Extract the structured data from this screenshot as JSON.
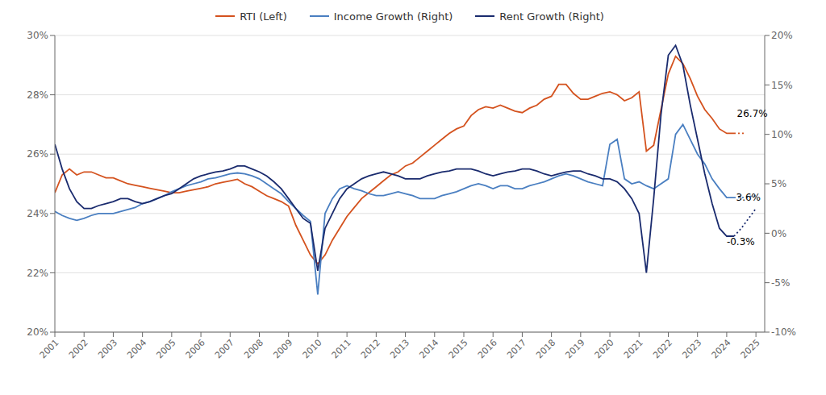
{
  "chart_data": {
    "type": "line",
    "x": [
      2001.0,
      2001.25,
      2001.5,
      2001.75,
      2002.0,
      2002.25,
      2002.5,
      2002.75,
      2003.0,
      2003.25,
      2003.5,
      2003.75,
      2004.0,
      2004.25,
      2004.5,
      2004.75,
      2005.0,
      2005.25,
      2005.5,
      2005.75,
      2006.0,
      2006.25,
      2006.5,
      2006.75,
      2007.0,
      2007.25,
      2007.5,
      2007.75,
      2008.0,
      2008.25,
      2008.5,
      2008.75,
      2009.0,
      2009.25,
      2009.5,
      2009.75,
      2010.0,
      2010.25,
      2010.5,
      2010.75,
      2011.0,
      2011.25,
      2011.5,
      2011.75,
      2012.0,
      2012.25,
      2012.5,
      2012.75,
      2013.0,
      2013.25,
      2013.5,
      2013.75,
      2014.0,
      2014.25,
      2014.5,
      2014.75,
      2015.0,
      2015.25,
      2015.5,
      2015.75,
      2016.0,
      2016.25,
      2016.5,
      2016.75,
      2017.0,
      2017.25,
      2017.5,
      2017.75,
      2018.0,
      2018.25,
      2018.5,
      2018.75,
      2019.0,
      2019.25,
      2019.5,
      2019.75,
      2020.0,
      2020.25,
      2020.5,
      2020.75,
      2021.0,
      2021.25,
      2021.5,
      2021.75,
      2022.0,
      2022.25,
      2022.5,
      2022.75,
      2023.0,
      2023.25,
      2023.5,
      2023.75,
      2024.0,
      2024.25
    ],
    "series": [
      {
        "name": "RTI (Left)",
        "color": "#d4521e",
        "axis": "y",
        "line_style": "solid",
        "values": [
          24.7,
          25.3,
          25.5,
          25.3,
          25.4,
          25.4,
          25.3,
          25.2,
          25.2,
          25.1,
          25.0,
          24.95,
          24.9,
          24.85,
          24.8,
          24.75,
          24.7,
          24.7,
          24.75,
          24.8,
          24.85,
          24.9,
          25.0,
          25.05,
          25.1,
          25.15,
          25.0,
          24.9,
          24.75,
          24.6,
          24.5,
          24.4,
          24.25,
          23.6,
          23.1,
          22.6,
          22.3,
          22.6,
          23.1,
          23.5,
          23.9,
          24.2,
          24.5,
          24.7,
          24.9,
          25.1,
          25.3,
          25.4,
          25.6,
          25.7,
          25.9,
          26.1,
          26.3,
          26.5,
          26.7,
          26.85,
          26.95,
          27.3,
          27.5,
          27.6,
          27.55,
          27.65,
          27.55,
          27.45,
          27.4,
          27.55,
          27.65,
          27.85,
          27.95,
          28.35,
          28.35,
          28.05,
          27.85,
          27.85,
          27.95,
          28.05,
          28.1,
          28.0,
          27.8,
          27.9,
          28.1,
          26.1,
          26.3,
          27.5,
          28.7,
          29.3,
          29.05,
          28.55,
          27.95,
          27.5,
          27.2,
          26.85,
          26.7,
          26.7
        ]
      },
      {
        "color": "#d4521e",
        "axis": "y",
        "line_style": "dotted",
        "x": [
          2024.25,
          2024.6
        ],
        "values": [
          26.7,
          26.7
        ]
      },
      {
        "name": "Income Growth (Right)",
        "color": "#4a7fc1",
        "axis": "y2",
        "line_style": "solid",
        "values": [
          2.2,
          1.8,
          1.5,
          1.3,
          1.5,
          1.8,
          2.0,
          2.0,
          2.0,
          2.2,
          2.4,
          2.6,
          3.0,
          3.2,
          3.5,
          3.8,
          4.2,
          4.5,
          4.8,
          5.0,
          5.2,
          5.5,
          5.6,
          5.8,
          6.0,
          6.1,
          6.0,
          5.8,
          5.5,
          5.0,
          4.5,
          4.0,
          3.2,
          2.5,
          1.8,
          1.2,
          -6.2,
          2.0,
          3.5,
          4.5,
          4.8,
          4.5,
          4.3,
          4.0,
          3.8,
          3.8,
          4.0,
          4.2,
          4.0,
          3.8,
          3.5,
          3.5,
          3.5,
          3.8,
          4.0,
          4.2,
          4.5,
          4.8,
          5.0,
          4.8,
          4.5,
          4.8,
          4.8,
          4.5,
          4.5,
          4.8,
          5.0,
          5.2,
          5.5,
          5.8,
          6.0,
          5.8,
          5.5,
          5.2,
          5.0,
          4.8,
          9.0,
          9.5,
          5.5,
          5.0,
          5.2,
          4.8,
          4.5,
          5.0,
          5.5,
          10.0,
          11.0,
          9.5,
          8.0,
          7.0,
          5.5,
          4.5,
          3.6,
          3.6
        ]
      },
      {
        "color": "#4a7fc1",
        "axis": "y2",
        "line_style": "dotted",
        "x": [
          2024.25,
          2024.5,
          2024.75,
          2025.0
        ],
        "values": [
          3.6,
          3.6,
          3.7,
          3.8
        ]
      },
      {
        "name": "Rent Growth (Right)",
        "color": "#1a2b6e",
        "axis": "y2",
        "line_style": "solid",
        "values": [
          9.0,
          6.5,
          4.5,
          3.2,
          2.5,
          2.5,
          2.8,
          3.0,
          3.2,
          3.5,
          3.5,
          3.2,
          3.0,
          3.2,
          3.5,
          3.8,
          4.0,
          4.5,
          5.0,
          5.5,
          5.8,
          6.0,
          6.2,
          6.3,
          6.5,
          6.8,
          6.8,
          6.5,
          6.2,
          5.8,
          5.2,
          4.5,
          3.5,
          2.5,
          1.5,
          1.0,
          -3.8,
          0.5,
          2.0,
          3.5,
          4.5,
          5.0,
          5.5,
          5.8,
          6.0,
          6.2,
          6.0,
          5.8,
          5.5,
          5.5,
          5.5,
          5.8,
          6.0,
          6.2,
          6.3,
          6.5,
          6.5,
          6.5,
          6.3,
          6.0,
          5.8,
          6.0,
          6.2,
          6.3,
          6.5,
          6.5,
          6.3,
          6.0,
          5.8,
          6.0,
          6.2,
          6.3,
          6.3,
          6.0,
          5.8,
          5.5,
          5.5,
          5.2,
          4.5,
          3.5,
          2.0,
          -4.0,
          3.5,
          12.0,
          18.0,
          19.0,
          17.0,
          13.0,
          9.5,
          6.0,
          3.0,
          0.5,
          -0.3,
          -0.3
        ]
      },
      {
        "color": "#1a2b6e",
        "axis": "y2",
        "line_style": "dotted",
        "x": [
          2024.25,
          2024.5,
          2024.75,
          2025.0
        ],
        "values": [
          -0.3,
          0.5,
          1.5,
          2.5
        ]
      }
    ],
    "xlim": [
      2001,
      2025.3
    ],
    "xticks": [
      2001,
      2002,
      2003,
      2004,
      2005,
      2006,
      2007,
      2008,
      2009,
      2010,
      2011,
      2012,
      2013,
      2014,
      2015,
      2016,
      2017,
      2018,
      2019,
      2020,
      2021,
      2022,
      2023,
      2024,
      2025
    ],
    "ylim": [
      20,
      30
    ],
    "yticks": [
      {
        "value": 20,
        "label": "20%"
      },
      {
        "value": 22,
        "label": "22%"
      },
      {
        "value": 24,
        "label": "24%"
      },
      {
        "value": 26,
        "label": "26%"
      },
      {
        "value": 28,
        "label": "28%"
      },
      {
        "value": 30,
        "label": "30%"
      }
    ],
    "y2lim": [
      -10,
      20
    ],
    "y2ticks": [
      {
        "value": -10,
        "label": "-10%"
      },
      {
        "value": -5,
        "label": "-5%"
      },
      {
        "value": 0,
        "label": "0%"
      },
      {
        "value": 5,
        "label": "5%"
      },
      {
        "value": 10,
        "label": "10%"
      },
      {
        "value": 15,
        "label": "15%"
      },
      {
        "value": 20,
        "label": "20%"
      }
    ],
    "annotations": [
      {
        "text": "26.7%",
        "x": 2024.35,
        "y": 27.35,
        "axis": "y"
      },
      {
        "text": "3.6%",
        "x": 2024.32,
        "y": 3.6,
        "axis": "y2"
      },
      {
        "text": "-0.3%",
        "x": 2024.0,
        "y": -0.9,
        "axis": "y2"
      }
    ],
    "grid": true,
    "legend": "top"
  }
}
